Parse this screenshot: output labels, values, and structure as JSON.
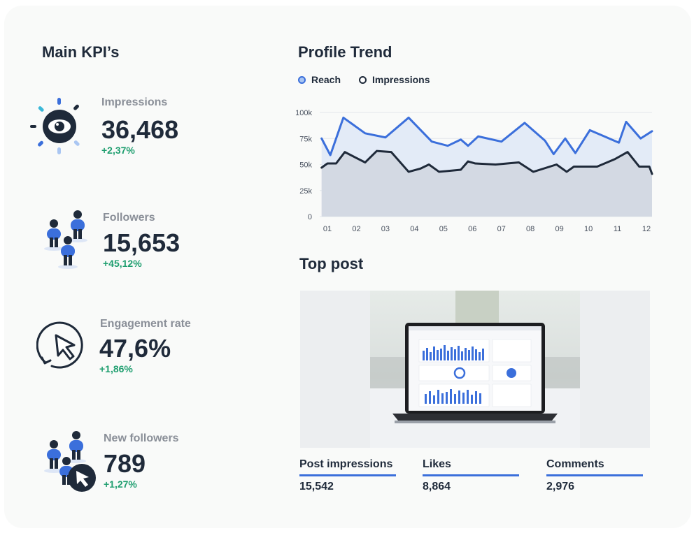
{
  "kpi_section": {
    "title": "Main KPI’s",
    "items": [
      {
        "label": "Impressions",
        "value": "36,468",
        "delta": "+2,37%",
        "icon": "eye-icon"
      },
      {
        "label": "Followers",
        "value": "15,653",
        "delta": "+45,12%",
        "icon": "people-icon"
      },
      {
        "label": "Engagement rate",
        "value": "47,6%",
        "delta": "+1,86%",
        "icon": "cursor-click-icon"
      },
      {
        "label": "New followers",
        "value": "789",
        "delta": "+1,27%",
        "icon": "people-cursor-icon"
      }
    ]
  },
  "trend": {
    "title": "Profile Trend",
    "legend": [
      "Reach",
      "Impressions"
    ]
  },
  "chart_data": {
    "type": "area",
    "x_ticks": [
      "01",
      "02",
      "03",
      "04",
      "05",
      "06",
      "07",
      "08",
      "09",
      "10",
      "11",
      "12"
    ],
    "y_ticks": [
      "0",
      "25k",
      "50k",
      "75k",
      "100k"
    ],
    "ylim": [
      0,
      100000
    ],
    "xlim": [
      1,
      12.2
    ],
    "grid": true,
    "legend_position": "top-left",
    "series": [
      {
        "name": "Reach",
        "color": "#3b6fdb",
        "fill": "#e3ebf7",
        "x": [
          0.8,
          1.1,
          1.55,
          2.3,
          3.0,
          3.8,
          4.6,
          5.15,
          5.6,
          5.85,
          6.2,
          7.0,
          7.8,
          8.5,
          8.8,
          9.2,
          9.55,
          10.05,
          10.55,
          11.05,
          11.3,
          11.8,
          12.4
        ],
        "y": [
          75000,
          59000,
          95000,
          80000,
          76000,
          95000,
          72000,
          68000,
          74000,
          68000,
          77000,
          72000,
          90000,
          73000,
          60000,
          75000,
          61000,
          83000,
          77000,
          71000,
          91000,
          75000,
          82000
        ]
      },
      {
        "name": "Impressions",
        "color": "#1f2a3a",
        "fill": "#d3d9e3",
        "x": [
          0.8,
          1.0,
          1.3,
          1.6,
          2.3,
          2.7,
          3.2,
          3.8,
          4.2,
          4.5,
          4.85,
          5.6,
          5.85,
          6.1,
          6.8,
          7.6,
          8.1,
          8.9,
          9.25,
          9.5,
          10.3,
          10.9,
          11.35,
          11.75,
          12.1,
          12.4
        ],
        "y": [
          47000,
          51000,
          51000,
          62000,
          52000,
          63000,
          62000,
          43000,
          46000,
          50000,
          43000,
          45000,
          53000,
          51000,
          50000,
          52000,
          43000,
          50000,
          43000,
          48000,
          48000,
          55000,
          62000,
          48000,
          48000,
          41000
        ]
      }
    ]
  },
  "top_post": {
    "title": "Top post",
    "stats": [
      {
        "label": "Post impressions",
        "value": "15,542"
      },
      {
        "label": "Likes",
        "value": "8,864"
      },
      {
        "label": "Comments",
        "value": "2,976"
      }
    ]
  },
  "colors": {
    "accent": "#3b6fdb",
    "positive": "#1e9e6f",
    "dark": "#1f2a3a",
    "muted": "#8a8f98"
  }
}
